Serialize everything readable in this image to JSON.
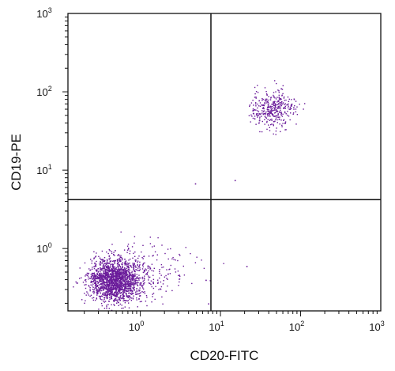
{
  "chart_data": {
    "type": "scatter",
    "xlabel": "CD20-FITC",
    "ylabel": "CD19-PE",
    "x_scale": "log",
    "y_scale": "log",
    "xlim": [
      0.125,
      1000
    ],
    "ylim": [
      0.16,
      1000
    ],
    "x_ticks": [
      {
        "value": 1,
        "base": "10",
        "exp": "0"
      },
      {
        "value": 10,
        "base": "10",
        "exp": "1"
      },
      {
        "value": 100,
        "base": "10",
        "exp": "2"
      },
      {
        "value": 1000,
        "base": "10",
        "exp": "3"
      }
    ],
    "y_ticks": [
      {
        "value": 1,
        "base": "10",
        "exp": "0"
      },
      {
        "value": 10,
        "base": "10",
        "exp": "1"
      },
      {
        "value": 100,
        "base": "10",
        "exp": "2"
      },
      {
        "value": 1000,
        "base": "10",
        "exp": "3"
      }
    ],
    "quadrant_gates": {
      "x": 7.6,
      "y": 4.2
    },
    "grid": false,
    "point_color": "#6a1b9a",
    "populations": [
      {
        "center_x": 0.48,
        "center_y": 0.4,
        "spread_log_x": 0.16,
        "spread_log_y": 0.14,
        "count": 1800
      },
      {
        "center_x": 45,
        "center_y": 62,
        "spread_log_x": 0.13,
        "spread_log_y": 0.12,
        "count": 380
      },
      {
        "center_x": 1.5,
        "center_y": 0.55,
        "spread_log_x": 0.25,
        "spread_log_y": 0.18,
        "count": 160
      }
    ],
    "outliers": [
      {
        "x": 4.8,
        "y": 6.8
      },
      {
        "x": 15,
        "y": 7.5
      },
      {
        "x": 21,
        "y": 0.6
      },
      {
        "x": 7.0,
        "y": 0.2
      },
      {
        "x": 6.5,
        "y": 0.4
      }
    ]
  }
}
